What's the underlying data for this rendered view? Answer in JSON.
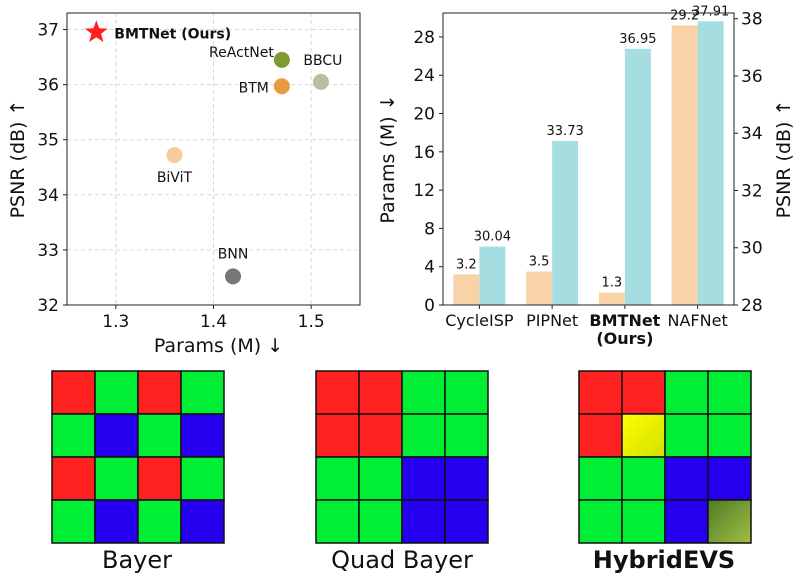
{
  "chart_data": [
    {
      "type": "scatter",
      "xlabel": "Params (M) ↓",
      "ylabel": "PSNR (dB) ↑",
      "xlim": [
        1.25,
        1.55
      ],
      "ylim": [
        32,
        37.3
      ],
      "xticks": [
        "1.3",
        "1.4",
        "1.5"
      ],
      "xtick_values": [
        1.3,
        1.4,
        1.5
      ],
      "yticks": [
        "32",
        "33",
        "34",
        "35",
        "36",
        "37"
      ],
      "ytick_values": [
        32,
        33,
        34,
        35,
        36,
        37
      ],
      "grid": true,
      "points": [
        {
          "label": "BMTNet (Ours)",
          "x": 1.28,
          "y": 36.95,
          "color": "#ff1f1f",
          "marker": "star",
          "bold": true
        },
        {
          "label": "ReActNet",
          "x": 1.47,
          "y": 36.45,
          "color": "#7d9a34",
          "marker": "circle",
          "bold": false
        },
        {
          "label": "BBCU",
          "x": 1.51,
          "y": 36.05,
          "color": "#b4c2a0",
          "marker": "circle",
          "bold": false
        },
        {
          "label": "BTM",
          "x": 1.47,
          "y": 35.97,
          "color": "#e99a42",
          "marker": "circle",
          "bold": false
        },
        {
          "label": "BiViT",
          "x": 1.36,
          "y": 34.72,
          "color": "#f8cc9a",
          "marker": "circle",
          "bold": false
        },
        {
          "label": "BNN",
          "x": 1.42,
          "y": 32.52,
          "color": "#777777",
          "marker": "circle",
          "bold": false
        }
      ]
    },
    {
      "type": "bar",
      "categories": [
        "CycleISP",
        "PIPNet",
        "BMTNet\n(Ours)",
        "NAFNet"
      ],
      "bold_category_index": 2,
      "series": [
        {
          "name": "Params (M)",
          "axis": "left",
          "color": "#f8d3a8",
          "values": [
            3.2,
            3.5,
            1.3,
            29.2
          ],
          "labels": [
            "3.2",
            "3.5",
            "1.3",
            "29.2"
          ]
        },
        {
          "name": "PSNR (dB)",
          "axis": "right",
          "color": "#a6dde1",
          "values": [
            30.04,
            33.73,
            36.95,
            37.91
          ],
          "labels": [
            "30.04",
            "33.73",
            "36.95",
            "37.91"
          ]
        }
      ],
      "ylabel": "Params (M) ↓",
      "y2label": "PSNR (dB) ↑",
      "ylim": [
        0,
        30.5
      ],
      "y2lim": [
        28,
        38.2
      ],
      "yticks": [
        "0",
        "4",
        "8",
        "12",
        "16",
        "20",
        "24",
        "28"
      ],
      "ytick_values": [
        0,
        4,
        8,
        12,
        16,
        20,
        24,
        28
      ],
      "y2ticks": [
        "28",
        "30",
        "32",
        "34",
        "36",
        "38"
      ],
      "y2tick_values": [
        28,
        30,
        32,
        34,
        36,
        38
      ]
    }
  ],
  "patterns": {
    "colors": {
      "R": "#ff2020",
      "G": "#00ef34",
      "B": "#2600ee"
    },
    "items": [
      {
        "title": "Bayer",
        "bold": false,
        "grid": [
          [
            "R",
            "G",
            "R",
            "G"
          ],
          [
            "G",
            "B",
            "G",
            "B"
          ],
          [
            "R",
            "G",
            "R",
            "G"
          ],
          [
            "G",
            "B",
            "G",
            "B"
          ]
        ]
      },
      {
        "title": "Quad Bayer",
        "bold": false,
        "grid": [
          [
            "R",
            "R",
            "G",
            "G"
          ],
          [
            "R",
            "R",
            "G",
            "G"
          ],
          [
            "G",
            "G",
            "B",
            "B"
          ],
          [
            "G",
            "G",
            "B",
            "B"
          ]
        ]
      },
      {
        "title": "HybridEVS",
        "bold": true,
        "grid": [
          [
            "R",
            "R",
            "G",
            "G"
          ],
          [
            "R",
            "Y",
            "G",
            "G"
          ],
          [
            "G",
            "G",
            "B",
            "B"
          ],
          [
            "G",
            "G",
            "B",
            "E"
          ]
        ]
      }
    ],
    "special_cells": {
      "Y": {
        "from": "#ffff00",
        "to": "#d0e000"
      },
      "E": {
        "from": "#4f7a2a",
        "to": "#a0c040"
      }
    }
  }
}
